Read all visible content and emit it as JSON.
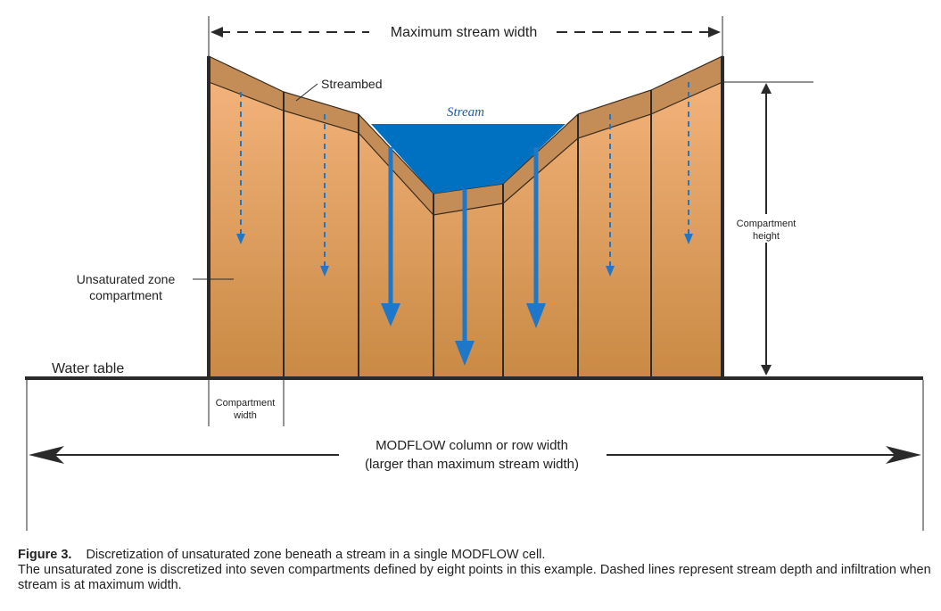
{
  "labels": {
    "max_width": "Maximum stream width",
    "streambed": "Streambed",
    "stream": "Stream",
    "compartment_height_line1": "Compartment",
    "compartment_height_line2": "height",
    "unsat_line1": "Unsaturated zone",
    "unsat_line2": "compartment",
    "water_table": "Water table",
    "compartment_width_line1": "Compartment",
    "compartment_width_line2": "width",
    "modflow_line1": "MODFLOW column or row width",
    "modflow_line2": "(larger than maximum stream width)"
  },
  "caption": {
    "figure_label": "Figure 3.",
    "title": "Discretization of unsaturated zone beneath a stream in a single MODFLOW cell.",
    "body": "The unsaturated zone is discretized into seven compartments defined by eight points in this example. Dashed lines represent stream depth and infiltration when stream is at maximum width."
  },
  "colors": {
    "soil_top": "#f2b27a",
    "soil_bottom": "#c98a45",
    "streambed": "#c48d58",
    "stream": "#0070c0",
    "arrow": "#1f77c9",
    "line": "#2a2a2a"
  }
}
